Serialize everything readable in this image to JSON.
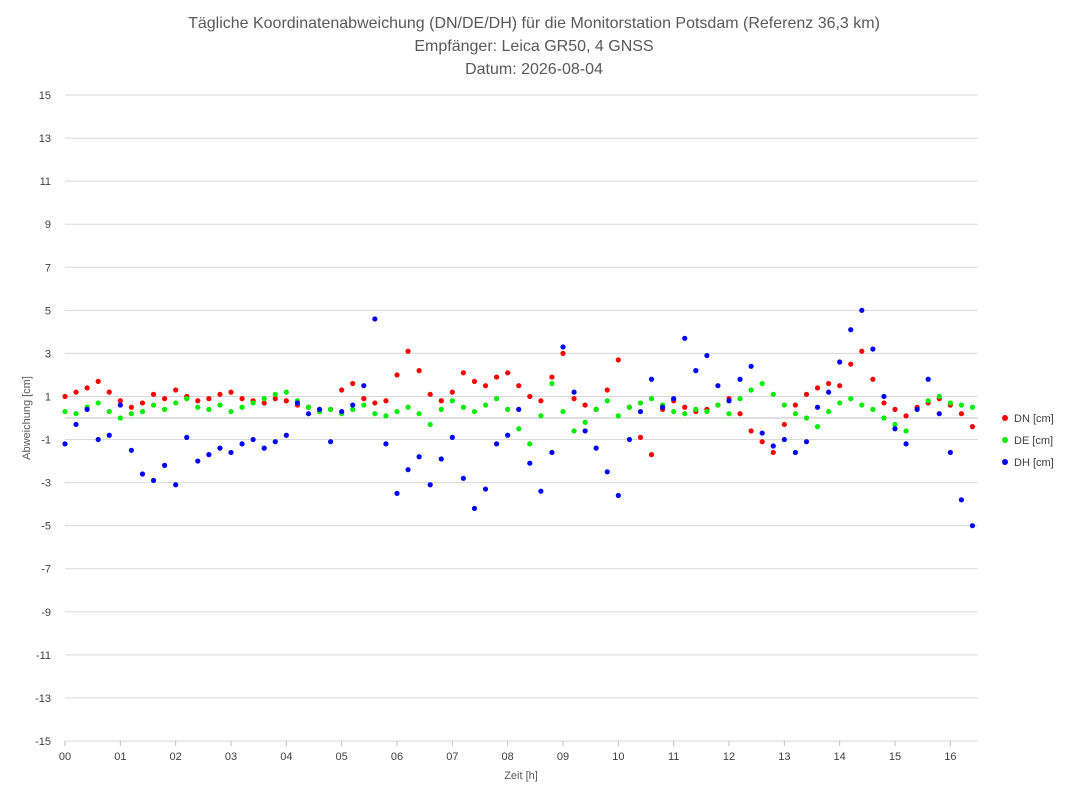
{
  "chart_data": {
    "type": "scatter",
    "title_lines": [
      "Tägliche Koordinatenabweichung (DN/DE/DH) für die Monitorstation Potsdam (Referenz 36,3 km)",
      "Empfänger: Leica GR50, 4 GNSS",
      "Datum: 2026-08-04"
    ],
    "xlabel": "Zeit [h]",
    "ylabel": "Abweichung [cm]",
    "xlim": [
      0,
      16.5
    ],
    "ylim": [
      -15,
      15
    ],
    "yticks": [
      15,
      13,
      11,
      9,
      7,
      5,
      3,
      1,
      -1,
      -3,
      -5,
      -7,
      -9,
      -11,
      -13,
      -15
    ],
    "xticks": [
      {
        "value": 0,
        "label": "00"
      },
      {
        "value": 1,
        "label": "01"
      },
      {
        "value": 2,
        "label": "02"
      },
      {
        "value": 3,
        "label": "03"
      },
      {
        "value": 4,
        "label": "04"
      },
      {
        "value": 5,
        "label": "05"
      },
      {
        "value": 6,
        "label": "06"
      },
      {
        "value": 7,
        "label": "07"
      },
      {
        "value": 8,
        "label": "08"
      },
      {
        "value": 9,
        "label": "09"
      },
      {
        "value": 10,
        "label": "10"
      },
      {
        "value": 11,
        "label": "11"
      },
      {
        "value": 12,
        "label": "12"
      },
      {
        "value": 13,
        "label": "13"
      },
      {
        "value": 14,
        "label": "14"
      },
      {
        "value": 15,
        "label": "15"
      },
      {
        "value": 16,
        "label": "16"
      }
    ],
    "grid": true,
    "legend_position": "right",
    "x": [
      0.0,
      0.2,
      0.4,
      0.6,
      0.8,
      1.0,
      1.2,
      1.4,
      1.6,
      1.8,
      2.0,
      2.2,
      2.4,
      2.6,
      2.8,
      3.0,
      3.2,
      3.4,
      3.6,
      3.8,
      4.0,
      4.2,
      4.4,
      4.6,
      4.8,
      5.0,
      5.2,
      5.4,
      5.6,
      5.8,
      6.0,
      6.2,
      6.4,
      6.6,
      6.8,
      7.0,
      7.2,
      7.4,
      7.6,
      7.8,
      8.0,
      8.2,
      8.4,
      8.6,
      8.8,
      9.0,
      9.2,
      9.4,
      9.6,
      9.8,
      10.0,
      10.2,
      10.4,
      10.6,
      10.8,
      11.0,
      11.2,
      11.4,
      11.6,
      11.8,
      12.0,
      12.2,
      12.4,
      12.6,
      12.8,
      13.0,
      13.2,
      13.4,
      13.6,
      13.8,
      14.0,
      14.2,
      14.4,
      14.6,
      14.8,
      15.0,
      15.2,
      15.4,
      15.6,
      15.8,
      16.0,
      16.2,
      16.4
    ],
    "series": [
      {
        "name": "DN [cm]",
        "color": "#ff0000",
        "values": [
          1.0,
          1.2,
          1.4,
          1.7,
          1.2,
          0.8,
          0.5,
          0.7,
          1.1,
          0.9,
          1.3,
          1.0,
          0.8,
          0.9,
          1.1,
          1.2,
          0.9,
          0.8,
          0.7,
          0.9,
          0.8,
          0.6,
          0.5,
          0.3,
          0.4,
          1.3,
          1.6,
          0.9,
          0.7,
          0.8,
          2.0,
          3.1,
          2.2,
          1.1,
          0.8,
          1.2,
          2.1,
          1.7,
          1.5,
          1.9,
          2.1,
          1.5,
          1.0,
          0.8,
          1.9,
          3.0,
          0.9,
          0.6,
          0.4,
          1.3,
          2.7,
          0.5,
          -0.9,
          -1.7,
          0.4,
          0.8,
          0.5,
          0.3,
          0.4,
          0.6,
          0.9,
          0.2,
          -0.6,
          -1.1,
          -1.6,
          -0.3,
          0.6,
          1.1,
          1.4,
          1.6,
          1.5,
          2.5,
          3.1,
          1.8,
          0.7,
          0.4,
          0.1,
          0.5,
          0.7,
          0.9,
          0.6,
          0.2,
          -0.4
        ]
      },
      {
        "name": "DE [cm]",
        "color": "#00ee00",
        "values": [
          0.3,
          0.2,
          0.5,
          0.7,
          0.3,
          0.0,
          0.2,
          0.3,
          0.6,
          0.4,
          0.7,
          0.9,
          0.5,
          0.4,
          0.6,
          0.3,
          0.5,
          0.7,
          0.9,
          1.1,
          1.2,
          0.8,
          0.5,
          0.3,
          0.4,
          0.2,
          0.4,
          0.6,
          0.2,
          0.1,
          0.3,
          0.5,
          0.2,
          -0.3,
          0.4,
          0.8,
          0.5,
          0.3,
          0.6,
          0.9,
          0.4,
          -0.5,
          -1.2,
          0.1,
          1.6,
          0.3,
          -0.6,
          -0.2,
          0.4,
          0.8,
          0.1,
          0.5,
          0.7,
          0.9,
          0.6,
          0.3,
          0.2,
          0.4,
          0.3,
          0.6,
          0.2,
          0.9,
          1.3,
          1.6,
          1.1,
          0.6,
          0.2,
          0.0,
          -0.4,
          0.3,
          0.7,
          0.9,
          0.6,
          0.4,
          0.0,
          -0.3,
          -0.6,
          0.4,
          0.8,
          1.0,
          0.7,
          0.6,
          0.5
        ]
      },
      {
        "name": "DH [cm]",
        "color": "#0000ff",
        "values": [
          -1.2,
          -0.3,
          0.4,
          -1.0,
          -0.8,
          0.6,
          -1.5,
          -2.6,
          -2.9,
          -2.2,
          -3.1,
          -0.9,
          -2.0,
          -1.7,
          -1.4,
          -1.6,
          -1.2,
          -1.0,
          -1.4,
          -1.1,
          -0.8,
          0.7,
          0.2,
          0.4,
          -1.1,
          0.3,
          0.6,
          1.5,
          4.6,
          -1.2,
          -3.5,
          -2.4,
          -1.8,
          -3.1,
          -1.9,
          -0.9,
          -2.8,
          -4.2,
          -3.3,
          -1.2,
          -0.8,
          0.4,
          -2.1,
          -3.4,
          -1.6,
          3.3,
          1.2,
          -0.6,
          -1.4,
          -2.5,
          -3.6,
          -1.0,
          0.3,
          1.8,
          0.5,
          0.9,
          3.7,
          2.2,
          2.9,
          1.5,
          0.8,
          1.8,
          2.4,
          -0.7,
          -1.3,
          -1.0,
          -1.6,
          -1.1,
          0.5,
          1.2,
          2.6,
          4.1,
          5.0,
          3.2,
          1.0,
          -0.5,
          -1.2,
          0.4,
          1.8,
          0.2,
          -1.6,
          -3.8,
          -5.0
        ]
      }
    ]
  }
}
